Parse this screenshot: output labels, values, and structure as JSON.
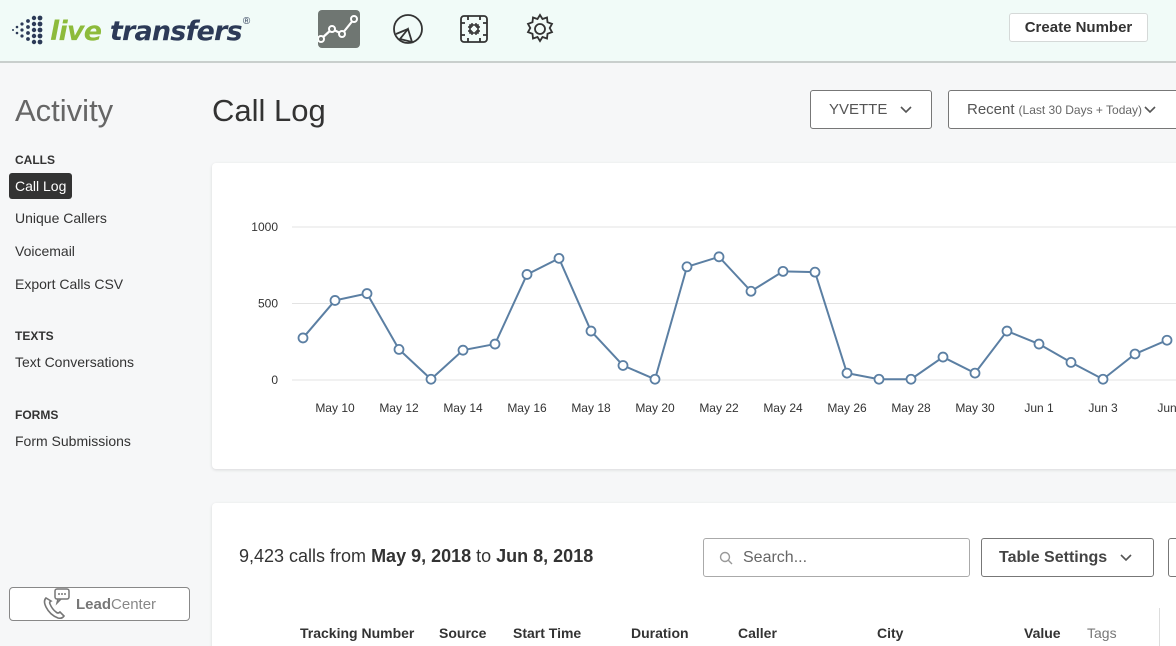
{
  "brand": {
    "live": "live",
    "transfers": "transfers",
    "reg": "®"
  },
  "topnav": {
    "icons": [
      "analytics-icon",
      "reports-pie-icon",
      "integrations-puzzle-icon",
      "settings-gear-icon"
    ],
    "create_label": "Create Number"
  },
  "sidebar": {
    "title": "Activity",
    "sections": [
      {
        "label": "CALLS",
        "items": [
          "Call Log",
          "Unique Callers",
          "Voicemail",
          "Export Calls CSV"
        ]
      },
      {
        "label": "TEXTS",
        "items": [
          "Text Conversations"
        ]
      },
      {
        "label": "FORMS",
        "items": [
          "Form Submissions"
        ]
      }
    ],
    "leadcenter": {
      "bold": "Lead",
      "rest": "Center"
    }
  },
  "header": {
    "title": "Call Log",
    "user_filter": "YVETTE",
    "range_label": "Recent",
    "range_sub": "(Last 30 Days + Today)"
  },
  "chart_data": {
    "type": "line",
    "ylim": [
      0,
      1000
    ],
    "yticks": [
      0,
      500,
      1000
    ],
    "grid": true,
    "xtick_labels": [
      "May 10",
      "May 12",
      "May 14",
      "May 16",
      "May 18",
      "May 20",
      "May 22",
      "May 24",
      "May 26",
      "May 28",
      "May 30",
      "Jun 1",
      "Jun 3",
      "Jun"
    ],
    "x": [
      "May 9",
      "May 10",
      "May 11",
      "May 12",
      "May 13",
      "May 14",
      "May 15",
      "May 16",
      "May 17",
      "May 18",
      "May 19",
      "May 20",
      "May 21",
      "May 22",
      "May 23",
      "May 24",
      "May 25",
      "May 26",
      "May 27",
      "May 28",
      "May 29",
      "May 30",
      "May 31",
      "Jun 1",
      "Jun 2",
      "Jun 3",
      "Jun 4",
      "Jun 5"
    ],
    "series": [
      {
        "values": [
          275,
          520,
          565,
          200,
          5,
          195,
          235,
          690,
          795,
          320,
          95,
          5,
          740,
          805,
          580,
          710,
          705,
          45,
          5,
          5,
          150,
          45,
          320,
          235,
          115,
          5,
          170,
          260
        ]
      }
    ],
    "colors": {
      "line": "#5b7fa3",
      "point_fill": "#ffffff"
    }
  },
  "table": {
    "summary_count": "9,423 calls from ",
    "summary_start": "May 9, 2018",
    "summary_to": " to ",
    "summary_end": "Jun 8, 2018",
    "search_placeholder": "Search...",
    "settings_label": "Table Settings",
    "columns": [
      "Tracking Number",
      "Source",
      "Start Time",
      "Duration",
      "Caller",
      "City",
      "Value",
      "Tags"
    ]
  }
}
